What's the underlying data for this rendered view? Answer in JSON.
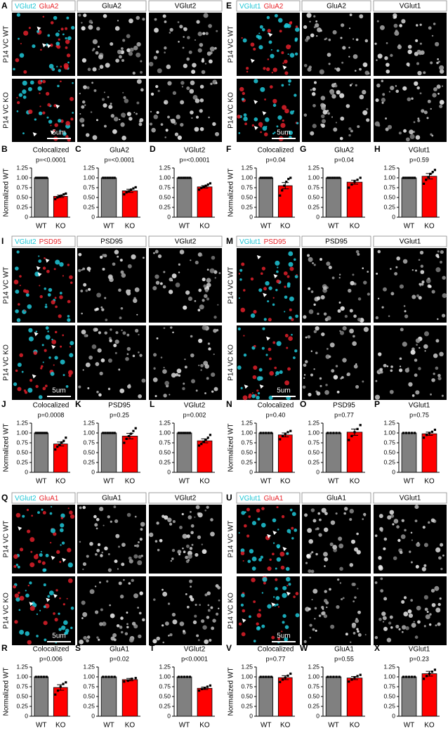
{
  "image_panels": [
    {
      "label": "A",
      "channels": [
        {
          "text": "VGlut2",
          "color": "#1fc6d6"
        },
        {
          "text": "GluA2",
          "color": "#e8242a"
        }
      ],
      "columns": [
        "GluA2",
        "VGlut2"
      ],
      "rows": [
        "P14 VC WT",
        "P14 VC KO"
      ],
      "scale": "5um"
    },
    {
      "label": "E",
      "channels": [
        {
          "text": "VGlut1",
          "color": "#1fc6d6"
        },
        {
          "text": "GluA2",
          "color": "#e8242a"
        }
      ],
      "columns": [
        "GluA2",
        "VGlut1"
      ],
      "rows": [
        "P14 VC WT",
        "P14 VC KO"
      ],
      "scale": "5um"
    },
    {
      "label": "I",
      "channels": [
        {
          "text": "VGlut2",
          "color": "#1fc6d6"
        },
        {
          "text": "PSD95",
          "color": "#e8242a"
        }
      ],
      "columns": [
        "PSD95",
        "VGlut2"
      ],
      "rows": [
        "P14 VC WT",
        "P14 VC KO"
      ],
      "scale": "5um"
    },
    {
      "label": "M",
      "channels": [
        {
          "text": "VGlut1",
          "color": "#1fc6d6"
        },
        {
          "text": "PSD95",
          "color": "#e8242a"
        }
      ],
      "columns": [
        "PSD95",
        "VGlut1"
      ],
      "rows": [
        "P14 VC WT",
        "P14 VC KO"
      ],
      "scale": "5um"
    },
    {
      "label": "Q",
      "channels": [
        {
          "text": "VGlut2",
          "color": "#1fc6d6"
        },
        {
          "text": "GluA1",
          "color": "#e8242a"
        }
      ],
      "columns": [
        "GluA1",
        "VGlut2"
      ],
      "rows": [
        "P14 VC WT",
        "P14 VC KO"
      ],
      "scale": "5um"
    },
    {
      "label": "U",
      "channels": [
        {
          "text": "VGlut1",
          "color": "#1fc6d6"
        },
        {
          "text": "GluA1",
          "color": "#e8242a"
        }
      ],
      "columns": [
        "GluA1",
        "VGlut1"
      ],
      "rows": [
        "P14 VC WT",
        "P14 VC KO"
      ],
      "scale": "5um"
    }
  ],
  "chart_data": [
    {
      "type": "bar",
      "label": "B",
      "title": "Colocalized",
      "subtitle": "p=<0.0001",
      "ylabel": "Normalized WT",
      "categories": [
        "WT",
        "KO"
      ],
      "values": [
        1,
        0.53
      ],
      "errors": [
        null,
        0.03
      ],
      "colors": [
        "#808080",
        "#ff0000"
      ],
      "points": [
        [
          1,
          1,
          1,
          1,
          1,
          1
        ],
        [
          0.46,
          0.5,
          0.53,
          0.55,
          0.58,
          0.6
        ]
      ],
      "ylim": [
        0,
        1.25
      ],
      "yticks": [
        0,
        0.25,
        {
          "value": 0.5,
          "label": "0.50"
        },
        0.75,
        {
          "value": 1,
          "label": "1.00"
        },
        1.25
      ]
    },
    {
      "type": "bar",
      "label": "C",
      "title": "GluA2",
      "subtitle": "p=<0.0001",
      "categories": [
        "WT",
        "KO"
      ],
      "values": [
        1,
        0.67
      ],
      "errors": [
        null,
        0.04
      ],
      "colors": [
        "#808080",
        "#ff0000"
      ],
      "points": [
        [
          1,
          1,
          1,
          1,
          1,
          1
        ],
        [
          0.58,
          0.63,
          0.66,
          0.7,
          0.73,
          0.76
        ]
      ],
      "ylim": [
        0,
        1.25
      ],
      "yticks": [
        0,
        0.25,
        {
          "value": 0.5,
          "label": "0.50"
        },
        0.75,
        {
          "value": 1,
          "label": "1.00"
        },
        1.25
      ]
    },
    {
      "type": "bar",
      "label": "D",
      "title": "VGlut2",
      "subtitle": "p=<0.0001",
      "categories": [
        "WT",
        "KO"
      ],
      "values": [
        1,
        0.77
      ],
      "errors": [
        null,
        0.03
      ],
      "colors": [
        "#808080",
        "#ff0000"
      ],
      "points": [
        [
          1,
          1,
          1,
          1,
          1,
          1
        ],
        [
          0.7,
          0.74,
          0.77,
          0.8,
          0.83,
          0.86
        ]
      ],
      "ylim": [
        0,
        1.25
      ],
      "yticks": [
        0,
        0.25,
        {
          "value": 0.5,
          "label": "0.50"
        },
        0.75,
        {
          "value": 1,
          "label": "1.00"
        },
        1.25
      ]
    },
    {
      "type": "bar",
      "label": "F",
      "title": "Colocalized",
      "subtitle": "p=0.04",
      "ylabel": "Normalized WT",
      "categories": [
        "WT",
        "KO"
      ],
      "values": [
        1,
        0.8
      ],
      "errors": [
        null,
        0.08
      ],
      "colors": [
        "#808080",
        "#ff0000"
      ],
      "points": [
        [
          1,
          1,
          1,
          1,
          1,
          1
        ],
        [
          0.55,
          0.68,
          0.8,
          0.9,
          0.97,
          1.0
        ]
      ],
      "ylim": [
        0,
        1.25
      ],
      "yticks": [
        0,
        0.25,
        {
          "value": 0.5,
          "label": "0.50"
        },
        0.75,
        {
          "value": 1,
          "label": "1.00"
        },
        1.25
      ]
    },
    {
      "type": "bar",
      "label": "G",
      "title": "GluA2",
      "subtitle": "p=0.04",
      "categories": [
        "WT",
        "KO"
      ],
      "values": [
        1,
        0.89
      ],
      "errors": [
        null,
        0.05
      ],
      "colors": [
        "#808080",
        "#ff0000"
      ],
      "points": [
        [
          1,
          1,
          1,
          1,
          1,
          1
        ],
        [
          0.75,
          0.83,
          0.9,
          0.95,
          1.0
        ]
      ],
      "ylim": [
        0,
        1.25
      ],
      "yticks": [
        0,
        0.25,
        {
          "value": 0.5,
          "label": "0.50"
        },
        0.75,
        {
          "value": 1,
          "label": "1.00"
        },
        1.25
      ]
    },
    {
      "type": "bar",
      "label": "H",
      "title": "VGlut1",
      "subtitle": "p=0.59",
      "categories": [
        "WT",
        "KO"
      ],
      "values": [
        1,
        1.04
      ],
      "errors": [
        null,
        0.07
      ],
      "colors": [
        "#808080",
        "#ff0000"
      ],
      "points": [
        [
          1,
          1,
          1,
          1,
          1,
          1
        ],
        [
          0.85,
          0.95,
          1.02,
          1.1,
          1.15,
          1.2
        ]
      ],
      "ylim": [
        0,
        1.25
      ],
      "yticks": [
        0,
        0.25,
        {
          "value": 0.5,
          "label": "0.50"
        },
        0.75,
        {
          "value": 1,
          "label": "1.00"
        },
        1.25
      ]
    },
    {
      "type": "bar",
      "label": "J",
      "title": "Colocalized",
      "subtitle": "p=0.0008",
      "ylabel": "Normalized WT",
      "categories": [
        "WT",
        "KO"
      ],
      "values": [
        1,
        0.72
      ],
      "errors": [
        null,
        0.05
      ],
      "colors": [
        "#808080",
        "#ff0000"
      ],
      "points": [
        [
          1,
          1,
          1,
          1,
          1,
          1
        ],
        [
          0.58,
          0.65,
          0.7,
          0.76,
          0.8,
          0.88
        ]
      ],
      "ylim": [
        0,
        1.25
      ],
      "yticks": [
        0,
        0.25,
        {
          "value": 0.5,
          "label": "0.50"
        },
        0.75,
        {
          "value": 1,
          "label": "1.00"
        },
        1.25
      ]
    },
    {
      "type": "bar",
      "label": "K",
      "title": "PSD95",
      "subtitle": "p=0.25",
      "categories": [
        "WT",
        "KO"
      ],
      "values": [
        1,
        0.92
      ],
      "errors": [
        null,
        0.07
      ],
      "colors": [
        "#808080",
        "#ff0000"
      ],
      "points": [
        [
          1,
          1,
          1,
          1,
          1,
          1
        ],
        [
          0.75,
          0.85,
          0.92,
          0.98,
          1.05,
          1.12
        ]
      ],
      "ylim": [
        0,
        1.25
      ],
      "yticks": [
        0,
        0.25,
        {
          "value": 0.5,
          "label": "0.50"
        },
        0.75,
        {
          "value": 1,
          "label": "1.00"
        },
        1.25
      ]
    },
    {
      "type": "bar",
      "label": "L",
      "title": "VGlut2",
      "subtitle": "p=0.002",
      "categories": [
        "WT",
        "KO"
      ],
      "values": [
        1,
        0.8
      ],
      "errors": [
        null,
        0.05
      ],
      "colors": [
        "#808080",
        "#ff0000"
      ],
      "points": [
        [
          1,
          1,
          1,
          1,
          1,
          1
        ],
        [
          0.68,
          0.72,
          0.78,
          0.83,
          0.88,
          0.95
        ]
      ],
      "ylim": [
        0,
        1.25
      ],
      "yticks": [
        0,
        0.25,
        {
          "value": 0.5,
          "label": "0.50"
        },
        0.75,
        {
          "value": 1,
          "label": "1.00"
        },
        1.25
      ]
    },
    {
      "type": "bar",
      "label": "N",
      "title": "Colocalized",
      "subtitle": "p=0.40",
      "ylabel": "Normalized WT",
      "categories": [
        "WT",
        "KO"
      ],
      "values": [
        1,
        0.95
      ],
      "errors": [
        null,
        0.05
      ],
      "colors": [
        "#808080",
        "#ff0000"
      ],
      "points": [
        [
          1,
          1,
          1,
          1,
          1
        ],
        [
          0.84,
          0.92,
          0.97,
          1.02,
          1.05
        ]
      ],
      "ylim": [
        0,
        1.25
      ],
      "yticks": [
        0,
        0.25,
        {
          "value": 0.5,
          "label": "0.50"
        },
        0.75,
        {
          "value": 1,
          "label": "1.00"
        },
        1.25
      ]
    },
    {
      "type": "bar",
      "label": "O",
      "title": "PSD95",
      "subtitle": "p=0.77",
      "categories": [
        "WT",
        "KO"
      ],
      "values": [
        1,
        1.02
      ],
      "errors": [
        null,
        0.08
      ],
      "colors": [
        "#808080",
        "#ff0000"
      ],
      "points": [
        [
          1,
          1,
          1,
          1,
          1
        ],
        [
          0.82,
          0.92,
          1.02,
          1.1,
          1.2
        ]
      ],
      "ylim": [
        0,
        1.25
      ],
      "yticks": [
        0,
        0.25,
        {
          "value": 0.5,
          "label": "0.50"
        },
        0.75,
        {
          "value": 1,
          "label": "1.00"
        },
        1.25
      ]
    },
    {
      "type": "bar",
      "label": "P",
      "title": "VGlut1",
      "subtitle": "p=0.75",
      "categories": [
        "WT",
        "KO"
      ],
      "values": [
        1,
        0.98
      ],
      "errors": [
        null,
        0.04
      ],
      "colors": [
        "#808080",
        "#ff0000"
      ],
      "points": [
        [
          1,
          1,
          1,
          1,
          1
        ],
        [
          0.88,
          0.95,
          1.0,
          1.03,
          1.08
        ]
      ],
      "ylim": [
        0,
        1.25
      ],
      "yticks": [
        0,
        0.25,
        {
          "value": 0.5,
          "label": "0.50"
        },
        0.75,
        {
          "value": 1,
          "label": "1.00"
        },
        1.25
      ]
    },
    {
      "type": "bar",
      "label": "R",
      "title": "Colocalized",
      "subtitle": "p=0.006",
      "ylabel": "Normalized WT",
      "categories": [
        "WT",
        "KO"
      ],
      "values": [
        1,
        0.73
      ],
      "errors": [
        null,
        0.07
      ],
      "colors": [
        "#808080",
        "#ff0000"
      ],
      "points": [
        [
          1,
          1,
          1,
          1,
          1
        ],
        [
          0.55,
          0.65,
          0.75,
          0.82,
          0.86
        ]
      ],
      "ylim": [
        0,
        1.25
      ],
      "yticks": [
        0,
        0.25,
        {
          "value": 0.5,
          "label": "0.50"
        },
        0.75,
        {
          "value": 1,
          "label": "1.00"
        },
        1.25
      ]
    },
    {
      "type": "bar",
      "label": "S",
      "title": "GluA1",
      "subtitle": "p=0.02",
      "categories": [
        "WT",
        "KO"
      ],
      "values": [
        1,
        0.93
      ],
      "errors": [
        null,
        0.03
      ],
      "colors": [
        "#808080",
        "#ff0000"
      ],
      "points": [
        [
          1,
          1,
          1,
          1,
          1
        ],
        [
          0.88,
          0.9,
          0.95,
          0.97
        ]
      ],
      "ylim": [
        0,
        1.25
      ],
      "yticks": [
        0,
        0.25,
        {
          "value": 0.5,
          "label": "0.50"
        },
        0.75,
        {
          "value": 1,
          "label": "1.00"
        },
        1.25
      ]
    },
    {
      "type": "bar",
      "label": "T",
      "title": "VGlut2",
      "subtitle": "p<0.0001",
      "categories": [
        "WT",
        "KO"
      ],
      "values": [
        1,
        0.71
      ],
      "errors": [
        null,
        0.03
      ],
      "colors": [
        "#808080",
        "#ff0000"
      ],
      "points": [
        [
          1,
          1,
          1,
          1,
          1
        ],
        [
          0.65,
          0.69,
          0.72,
          0.75,
          0.78
        ]
      ],
      "ylim": [
        0,
        1.25
      ],
      "yticks": [
        0,
        0.25,
        {
          "value": 0.5,
          "label": "0.50"
        },
        0.75,
        {
          "value": 1,
          "label": "1.00"
        },
        1.25
      ]
    },
    {
      "type": "bar",
      "label": "V",
      "title": "Colocalized",
      "subtitle": "p=0.77",
      "ylabel": "Normalized WT",
      "categories": [
        "WT",
        "KO"
      ],
      "values": [
        1,
        0.98
      ],
      "errors": [
        null,
        0.05
      ],
      "colors": [
        "#808080",
        "#ff0000"
      ],
      "points": [
        [
          1,
          1,
          1,
          1,
          1
        ],
        [
          0.87,
          0.93,
          0.98,
          1.03,
          1.08
        ]
      ],
      "ylim": [
        0,
        1.25
      ],
      "yticks": [
        0,
        0.25,
        {
          "value": 0.5,
          "label": "0.50"
        },
        0.75,
        {
          "value": 1,
          "label": "1.00"
        },
        1.25
      ]
    },
    {
      "type": "bar",
      "label": "W",
      "title": "GluA1",
      "subtitle": "p=0.55",
      "categories": [
        "WT",
        "KO"
      ],
      "values": [
        1,
        0.97
      ],
      "errors": [
        null,
        0.04
      ],
      "colors": [
        "#808080",
        "#ff0000"
      ],
      "points": [
        [
          1,
          1,
          1,
          1,
          1
        ],
        [
          0.88,
          0.93,
          0.98,
          1.02,
          1.05
        ]
      ],
      "ylim": [
        0,
        1.25
      ],
      "yticks": [
        0,
        0.25,
        {
          "value": 0.5,
          "label": "0.50"
        },
        0.75,
        {
          "value": 1,
          "label": "1.00"
        },
        1.25
      ]
    },
    {
      "type": "bar",
      "label": "X",
      "title": "VGlut1",
      "subtitle": "p=0.23",
      "categories": [
        "WT",
        "KO"
      ],
      "values": [
        1,
        1.08
      ],
      "errors": [
        null,
        0.06
      ],
      "colors": [
        "#808080",
        "#ff0000"
      ],
      "points": [
        [
          1,
          1,
          1,
          1,
          1
        ],
        [
          0.95,
          1.02,
          1.08,
          1.13,
          1.18
        ]
      ],
      "ylim": [
        0,
        1.25
      ],
      "yticks": [
        0,
        0.25,
        {
          "value": 0.5,
          "label": "0.50"
        },
        0.75,
        {
          "value": 1,
          "label": "1.00"
        },
        1.25
      ]
    }
  ]
}
